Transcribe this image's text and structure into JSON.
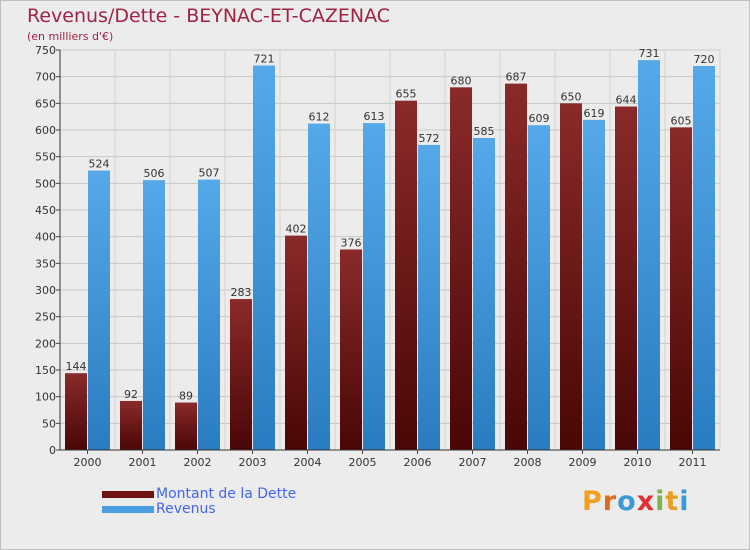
{
  "title": "Revenus/Dette - BEYNAC-ET-CAZENAC",
  "subtitle": "(en milliers d'€)",
  "chart_data": {
    "type": "bar",
    "categories": [
      "2000",
      "2001",
      "2002",
      "2003",
      "2004",
      "2005",
      "2006",
      "2007",
      "2008",
      "2009",
      "2010",
      "2011"
    ],
    "series": [
      {
        "name": "Montant de la Dette",
        "color": "#7f1f1f",
        "values": [
          144,
          92,
          89,
          283,
          402,
          376,
          655,
          680,
          687,
          650,
          644,
          605
        ]
      },
      {
        "name": "Revenus",
        "color": "#4b9fe0",
        "values": [
          524,
          506,
          507,
          721,
          612,
          613,
          572,
          585,
          609,
          619,
          731,
          720
        ]
      }
    ],
    "ylim": [
      0,
      750
    ],
    "yticks": [
      0,
      50,
      100,
      150,
      200,
      250,
      300,
      350,
      400,
      450,
      500,
      550,
      600,
      650,
      700,
      750
    ],
    "grid": true,
    "legend": "bottom-left"
  },
  "legend": [
    {
      "label": "Montant de la Dette",
      "color": "#6e1212"
    },
    {
      "label": "Revenus",
      "color": "#4b9fe0"
    }
  ],
  "logo": {
    "letters": [
      "P",
      "r",
      "o",
      "x",
      "i",
      "t",
      "i"
    ],
    "colors": [
      "#f0a020",
      "#e06a20",
      "#3a9ad8",
      "#e03030",
      "#7ab648",
      "#e8a020",
      "#3a9ad8"
    ]
  }
}
